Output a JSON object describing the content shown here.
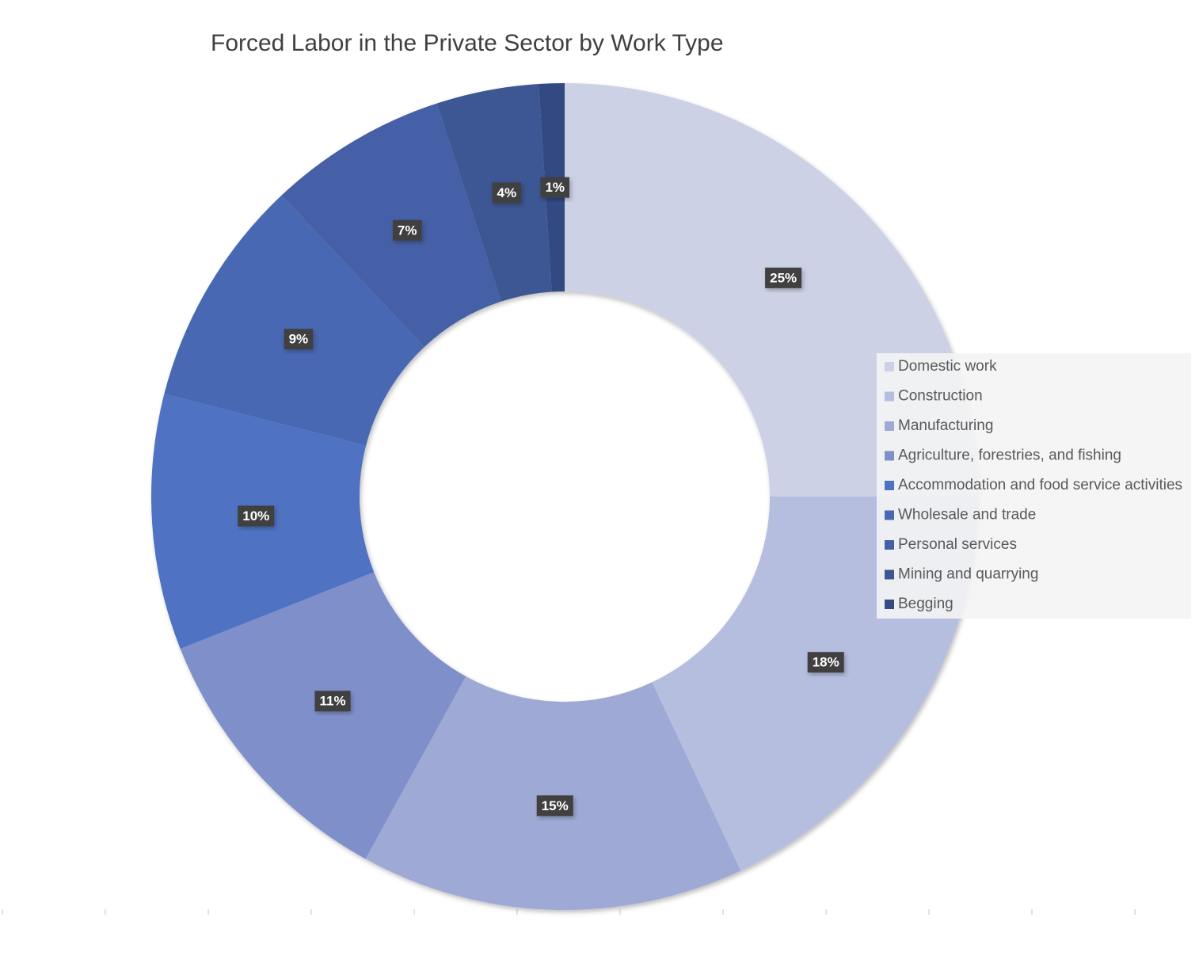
{
  "chart_data": {
    "type": "donut",
    "title": "Forced Labor in the Private Sector by Work Type",
    "categories": [
      "Domestic work",
      "Construction",
      "Manufacturing",
      "Agriculture, forestries, and fishing",
      "Accommodation and food service activities",
      "Wholesale and trade",
      "Personal services",
      "Mining and quarrying",
      "Begging"
    ],
    "values": [
      25,
      18,
      15,
      11,
      10,
      9,
      7,
      4,
      1
    ],
    "value_labels": [
      "25%",
      "18%",
      "15%",
      "11%",
      "10%",
      "9%",
      "7%",
      "4%",
      "1%"
    ],
    "colors": [
      "#ccd1e6",
      "#b5bedf",
      "#9eaad5",
      "#7f8fca",
      "#4f73c2",
      "#4868b3",
      "#4561a6",
      "#3d5794",
      "#334a82"
    ],
    "legend": "right"
  }
}
